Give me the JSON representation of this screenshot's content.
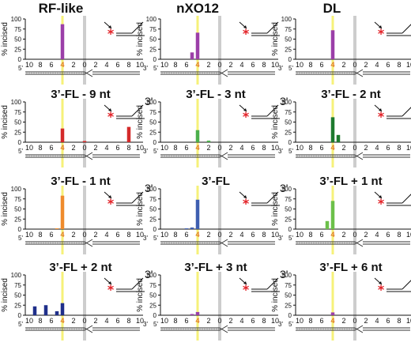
{
  "column_titles": [
    "RF-like",
    "nXO12",
    "DL"
  ],
  "ylabel": "% incised",
  "yticks": [
    "100",
    "75",
    "50",
    "25",
    "0"
  ],
  "xticks": [
    "10",
    "8",
    "6",
    "4",
    "2",
    "0",
    "2",
    "4",
    "6",
    "8",
    "10"
  ],
  "end5": "5'",
  "end3": "3'",
  "annotation_3prime": "3'",
  "star_symbol": "*",
  "colors": {
    "yellow_line": "#f5ef6a",
    "gray_line": "#c8c8c8",
    "highlight_tick": "#e07a1f",
    "star": "#e31e24"
  },
  "chart_data": [
    {
      "type": "bar",
      "title": "",
      "substrate": "RF-like",
      "row": 0,
      "col": 0,
      "color": "#9b3fa8",
      "ylim": [
        0,
        100
      ],
      "x": [
        10,
        9,
        8,
        7,
        6,
        5,
        4,
        3,
        2,
        1,
        0,
        1,
        2,
        3,
        4,
        5,
        6,
        7,
        8,
        9,
        10
      ],
      "values": [
        0,
        0,
        0,
        0,
        0,
        0,
        87,
        0,
        0,
        0,
        0,
        0,
        0,
        0,
        0,
        0,
        0,
        0,
        0,
        0,
        0
      ]
    },
    {
      "type": "bar",
      "title": "",
      "substrate": "nXO12",
      "row": 0,
      "col": 1,
      "color": "#9b3fa8",
      "ylim": [
        0,
        100
      ],
      "x": [
        10,
        9,
        8,
        7,
        6,
        5,
        4,
        3,
        2,
        1,
        0,
        1,
        2,
        3,
        4,
        5,
        6,
        7,
        8,
        9,
        10
      ],
      "values": [
        0,
        0,
        0,
        0,
        0,
        17,
        66,
        0,
        0,
        0,
        0,
        0,
        0,
        0,
        0,
        0,
        0,
        0,
        0,
        0,
        0
      ]
    },
    {
      "type": "bar",
      "title": "",
      "substrate": "DL",
      "row": 0,
      "col": 2,
      "color": "#9b3fa8",
      "ylim": [
        0,
        100
      ],
      "x": [
        10,
        9,
        8,
        7,
        6,
        5,
        4,
        3,
        2,
        1,
        0,
        1,
        2,
        3,
        4,
        5,
        6,
        7,
        8,
        9,
        10
      ],
      "values": [
        0,
        0,
        0,
        0,
        0,
        0,
        72,
        0,
        0,
        0,
        0,
        0,
        0,
        0,
        0,
        0,
        0,
        0,
        0,
        0,
        0
      ]
    },
    {
      "type": "bar",
      "title": "3’-FL - 9 nt",
      "row": 1,
      "col": 0,
      "color": "#d42a2a",
      "ylim": [
        0,
        100
      ],
      "x": [
        10,
        9,
        8,
        7,
        6,
        5,
        4,
        3,
        2,
        1,
        0,
        1,
        2,
        3,
        4,
        5,
        6,
        7,
        8,
        9,
        10
      ],
      "values": [
        0,
        0,
        0,
        0,
        0,
        0,
        34,
        0,
        0,
        0,
        3,
        0,
        0,
        0,
        0,
        0,
        0,
        0,
        38,
        0,
        0
      ]
    },
    {
      "type": "bar",
      "title": "3’-FL - 3 nt",
      "row": 1,
      "col": 1,
      "color": "#4caf4c",
      "ylim": [
        0,
        100
      ],
      "x": [
        10,
        9,
        8,
        7,
        6,
        5,
        4,
        3,
        2,
        1,
        0,
        1,
        2,
        3,
        4,
        5,
        6,
        7,
        8,
        9,
        10
      ],
      "values": [
        0,
        0,
        0,
        0,
        0,
        0,
        30,
        0,
        4,
        0,
        0,
        0,
        0,
        0,
        0,
        0,
        0,
        0,
        0,
        0,
        0
      ]
    },
    {
      "type": "bar",
      "title": "3’-FL - 2 nt",
      "row": 1,
      "col": 2,
      "color": "#1e7a2e",
      "ylim": [
        0,
        100
      ],
      "x": [
        10,
        9,
        8,
        7,
        6,
        5,
        4,
        3,
        2,
        1,
        0,
        1,
        2,
        3,
        4,
        5,
        6,
        7,
        8,
        9,
        10
      ],
      "values": [
        0,
        0,
        0,
        0,
        0,
        0,
        62,
        18,
        0,
        0,
        0,
        0,
        0,
        0,
        0,
        0,
        0,
        0,
        0,
        0,
        0
      ]
    },
    {
      "type": "bar",
      "title": "3’-FL - 1 nt",
      "row": 2,
      "col": 0,
      "color": "#ef8b2c",
      "ylim": [
        0,
        100
      ],
      "x": [
        10,
        9,
        8,
        7,
        6,
        5,
        4,
        3,
        2,
        1,
        0,
        1,
        2,
        3,
        4,
        5,
        6,
        7,
        8,
        9,
        10
      ],
      "values": [
        0,
        0,
        0,
        0,
        0,
        2,
        83,
        0,
        0,
        0,
        0,
        0,
        0,
        0,
        0,
        0,
        0,
        0,
        0,
        0,
        0
      ]
    },
    {
      "type": "bar",
      "title": "3’-FL",
      "row": 2,
      "col": 1,
      "color": "#3f5fb0",
      "ylim": [
        0,
        100
      ],
      "x": [
        10,
        9,
        8,
        7,
        6,
        5,
        4,
        3,
        2,
        1,
        0,
        1,
        2,
        3,
        4,
        5,
        6,
        7,
        8,
        9,
        10
      ],
      "values": [
        0,
        0,
        0,
        0,
        2,
        4,
        73,
        0,
        0,
        0,
        0,
        0,
        0,
        0,
        0,
        0,
        0,
        0,
        0,
        0,
        0
      ]
    },
    {
      "type": "bar",
      "title": "3’-FL + 1 nt",
      "row": 2,
      "col": 2,
      "color": "#6cc04a",
      "ylim": [
        0,
        100
      ],
      "x": [
        10,
        9,
        8,
        7,
        6,
        5,
        4,
        3,
        2,
        1,
        0,
        1,
        2,
        3,
        4,
        5,
        6,
        7,
        8,
        9,
        10
      ],
      "values": [
        0,
        0,
        0,
        0,
        0,
        20,
        70,
        0,
        0,
        0,
        0,
        0,
        0,
        0,
        0,
        0,
        0,
        0,
        0,
        0,
        0
      ]
    },
    {
      "type": "bar",
      "title": "3’-FL + 2 nt",
      "row": 3,
      "col": 0,
      "color": "#1f2f8a",
      "ylim": [
        0,
        100
      ],
      "x": [
        10,
        9,
        8,
        7,
        6,
        5,
        4,
        3,
        2,
        1,
        0,
        1,
        2,
        3,
        4,
        5,
        6,
        7,
        8,
        9,
        10
      ],
      "values": [
        0,
        22,
        0,
        25,
        0,
        10,
        30,
        0,
        0,
        0,
        0,
        0,
        0,
        0,
        0,
        0,
        0,
        0,
        0,
        0,
        0
      ]
    },
    {
      "type": "bar",
      "title": "3’-FL + 3 nt",
      "row": 3,
      "col": 1,
      "color": "#9b3fa8",
      "ylim": [
        0,
        100
      ],
      "x": [
        10,
        9,
        8,
        7,
        6,
        5,
        4,
        3,
        2,
        1,
        0,
        1,
        2,
        3,
        4,
        5,
        6,
        7,
        8,
        9,
        10
      ],
      "values": [
        0,
        0,
        0,
        0,
        0,
        3,
        8,
        0,
        0,
        0,
        0,
        0,
        0,
        0,
        0,
        0,
        0,
        0,
        0,
        0,
        0
      ]
    },
    {
      "type": "bar",
      "title": "3’-FL + 6 nt",
      "row": 3,
      "col": 2,
      "color": "#9b3fa8",
      "ylim": [
        0,
        100
      ],
      "x": [
        10,
        9,
        8,
        7,
        6,
        5,
        4,
        3,
        2,
        1,
        0,
        1,
        2,
        3,
        4,
        5,
        6,
        7,
        8,
        9,
        10
      ],
      "values": [
        0,
        0,
        0,
        0,
        0,
        0,
        7,
        0,
        0,
        0,
        0,
        0,
        0,
        0,
        0,
        0,
        0,
        0,
        0,
        0,
        0
      ]
    }
  ]
}
